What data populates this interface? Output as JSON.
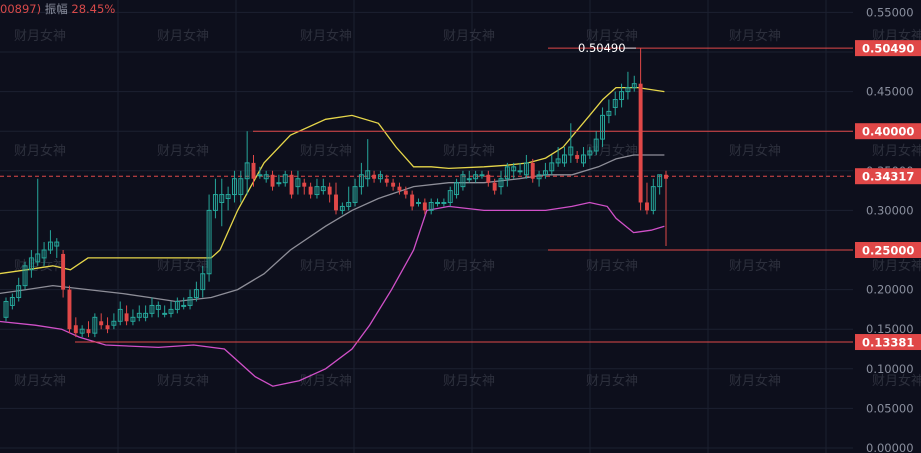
{
  "header": {
    "code": "00897)",
    "amplitude_label": "振幅",
    "amplitude_value": "28.45%"
  },
  "watermark": "财月女神",
  "colors": {
    "background": "#0d0f1c",
    "up": "#26a69a",
    "down": "#e04848",
    "ma_upper": "#e6d64a",
    "ma_mid": "#8e8e98",
    "ma_lower": "#d050c8",
    "level_line": "#e04848"
  },
  "chart_data": {
    "type": "candlestick",
    "ylim": [
      0,
      0.55
    ],
    "yticks": [
      "0.55000",
      "0.50000",
      "0.45000",
      "0.40000",
      "0.35000",
      "0.30000",
      "0.25000",
      "0.20000",
      "0.15000",
      "0.10000",
      "0.05000",
      "0.00000"
    ],
    "ytick_values": [
      0.55,
      0.5,
      0.45,
      0.4,
      0.35,
      0.3,
      0.25,
      0.2,
      0.15,
      0.1,
      0.05,
      0.0
    ],
    "price_levels": [
      {
        "value": 0.5049,
        "label": "0.50490"
      },
      {
        "value": 0.4,
        "label": "0.40000"
      },
      {
        "value": 0.34317,
        "label": "0.34317",
        "dashed": true
      },
      {
        "value": 0.25,
        "label": "0.25000"
      },
      {
        "value": 0.13381,
        "label": "0.13381"
      }
    ],
    "peak_annotation": {
      "value": 0.5049,
      "label": "0.50490"
    },
    "candles": [
      [
        0.165,
        0.185,
        0.16,
        0.19
      ],
      [
        0.18,
        0.19,
        0.175,
        0.195
      ],
      [
        0.19,
        0.205,
        0.185,
        0.215
      ],
      [
        0.205,
        0.23,
        0.2,
        0.235
      ],
      [
        0.225,
        0.24,
        0.215,
        0.25
      ],
      [
        0.235,
        0.245,
        0.23,
        0.34
      ],
      [
        0.24,
        0.25,
        0.23,
        0.26
      ],
      [
        0.25,
        0.26,
        0.245,
        0.275
      ],
      [
        0.255,
        0.26,
        0.24,
        0.265
      ],
      [
        0.245,
        0.2,
        0.19,
        0.25
      ],
      [
        0.2,
        0.15,
        0.145,
        0.205
      ],
      [
        0.155,
        0.145,
        0.14,
        0.165
      ],
      [
        0.145,
        0.15,
        0.14,
        0.155
      ],
      [
        0.15,
        0.145,
        0.14,
        0.16
      ],
      [
        0.145,
        0.165,
        0.14,
        0.17
      ],
      [
        0.16,
        0.155,
        0.15,
        0.17
      ],
      [
        0.155,
        0.15,
        0.145,
        0.165
      ],
      [
        0.155,
        0.16,
        0.15,
        0.17
      ],
      [
        0.16,
        0.175,
        0.155,
        0.185
      ],
      [
        0.17,
        0.16,
        0.155,
        0.18
      ],
      [
        0.16,
        0.165,
        0.155,
        0.175
      ],
      [
        0.165,
        0.17,
        0.16,
        0.18
      ],
      [
        0.165,
        0.17,
        0.16,
        0.18
      ],
      [
        0.17,
        0.18,
        0.165,
        0.19
      ],
      [
        0.175,
        0.18,
        0.165,
        0.185
      ],
      [
        0.17,
        0.17,
        0.165,
        0.18
      ],
      [
        0.17,
        0.175,
        0.165,
        0.185
      ],
      [
        0.175,
        0.185,
        0.17,
        0.19
      ],
      [
        0.18,
        0.18,
        0.175,
        0.19
      ],
      [
        0.18,
        0.19,
        0.175,
        0.2
      ],
      [
        0.19,
        0.2,
        0.185,
        0.21
      ],
      [
        0.2,
        0.22,
        0.19,
        0.23
      ],
      [
        0.22,
        0.3,
        0.21,
        0.32
      ],
      [
        0.3,
        0.32,
        0.29,
        0.34
      ],
      [
        0.31,
        0.32,
        0.28,
        0.34
      ],
      [
        0.315,
        0.32,
        0.3,
        0.33
      ],
      [
        0.32,
        0.34,
        0.31,
        0.35
      ],
      [
        0.32,
        0.34,
        0.31,
        0.35
      ],
      [
        0.34,
        0.36,
        0.32,
        0.4
      ],
      [
        0.36,
        0.34,
        0.33,
        0.37
      ],
      [
        0.345,
        0.345,
        0.34,
        0.355
      ],
      [
        0.34,
        0.345,
        0.335,
        0.35
      ],
      [
        0.345,
        0.33,
        0.325,
        0.35
      ],
      [
        0.335,
        0.335,
        0.33,
        0.345
      ],
      [
        0.335,
        0.345,
        0.33,
        0.35
      ],
      [
        0.345,
        0.32,
        0.315,
        0.35
      ],
      [
        0.33,
        0.34,
        0.32,
        0.35
      ],
      [
        0.335,
        0.33,
        0.32,
        0.34
      ],
      [
        0.33,
        0.32,
        0.315,
        0.335
      ],
      [
        0.32,
        0.33,
        0.315,
        0.34
      ],
      [
        0.325,
        0.33,
        0.32,
        0.34
      ],
      [
        0.33,
        0.32,
        0.31,
        0.335
      ],
      [
        0.32,
        0.3,
        0.295,
        0.335
      ],
      [
        0.3,
        0.305,
        0.295,
        0.31
      ],
      [
        0.305,
        0.31,
        0.3,
        0.33
      ],
      [
        0.31,
        0.33,
        0.305,
        0.34
      ],
      [
        0.33,
        0.345,
        0.32,
        0.36
      ],
      [
        0.34,
        0.35,
        0.33,
        0.39
      ],
      [
        0.345,
        0.34,
        0.335,
        0.35
      ],
      [
        0.34,
        0.345,
        0.335,
        0.35
      ],
      [
        0.34,
        0.335,
        0.33,
        0.345
      ],
      [
        0.335,
        0.33,
        0.325,
        0.34
      ],
      [
        0.33,
        0.325,
        0.32,
        0.335
      ],
      [
        0.325,
        0.32,
        0.315,
        0.33
      ],
      [
        0.32,
        0.305,
        0.3,
        0.325
      ],
      [
        0.31,
        0.31,
        0.305,
        0.315
      ],
      [
        0.31,
        0.3,
        0.295,
        0.315
      ],
      [
        0.3,
        0.31,
        0.295,
        0.315
      ],
      [
        0.31,
        0.31,
        0.305,
        0.315
      ],
      [
        0.31,
        0.31,
        0.305,
        0.315
      ],
      [
        0.31,
        0.325,
        0.305,
        0.33
      ],
      [
        0.32,
        0.335,
        0.315,
        0.34
      ],
      [
        0.33,
        0.345,
        0.325,
        0.35
      ],
      [
        0.34,
        0.34,
        0.335,
        0.35
      ],
      [
        0.34,
        0.345,
        0.335,
        0.35
      ],
      [
        0.345,
        0.345,
        0.34,
        0.35
      ],
      [
        0.345,
        0.335,
        0.33,
        0.35
      ],
      [
        0.335,
        0.325,
        0.32,
        0.34
      ],
      [
        0.33,
        0.34,
        0.32,
        0.35
      ],
      [
        0.34,
        0.355,
        0.33,
        0.36
      ],
      [
        0.35,
        0.355,
        0.34,
        0.36
      ],
      [
        0.35,
        0.35,
        0.345,
        0.36
      ],
      [
        0.345,
        0.36,
        0.34,
        0.37
      ],
      [
        0.36,
        0.34,
        0.335,
        0.365
      ],
      [
        0.34,
        0.345,
        0.33,
        0.35
      ],
      [
        0.345,
        0.35,
        0.34,
        0.36
      ],
      [
        0.35,
        0.36,
        0.345,
        0.37
      ],
      [
        0.36,
        0.365,
        0.355,
        0.38
      ],
      [
        0.36,
        0.37,
        0.355,
        0.38
      ],
      [
        0.37,
        0.38,
        0.36,
        0.41
      ],
      [
        0.37,
        0.365,
        0.36,
        0.375
      ],
      [
        0.36,
        0.37,
        0.355,
        0.38
      ],
      [
        0.37,
        0.375,
        0.365,
        0.38
      ],
      [
        0.375,
        0.39,
        0.37,
        0.4
      ],
      [
        0.39,
        0.42,
        0.38,
        0.43
      ],
      [
        0.42,
        0.425,
        0.41,
        0.44
      ],
      [
        0.43,
        0.44,
        0.42,
        0.45
      ],
      [
        0.44,
        0.45,
        0.43,
        0.46
      ],
      [
        0.45,
        0.455,
        0.44,
        0.475
      ],
      [
        0.455,
        0.46,
        0.45,
        0.47
      ],
      [
        0.46,
        0.31,
        0.3,
        0.5049
      ],
      [
        0.31,
        0.3,
        0.295,
        0.335
      ],
      [
        0.3,
        0.33,
        0.295,
        0.34
      ],
      [
        0.33,
        0.345,
        0.32,
        0.345
      ],
      [
        0.345,
        0.34,
        0.255,
        0.35
      ]
    ],
    "upper_band": [
      [
        -0.002,
        0.22
      ],
      [
        0.03,
        0.225
      ],
      [
        0.06,
        0.23
      ],
      [
        0.08,
        0.225
      ],
      [
        0.1,
        0.24
      ],
      [
        0.12,
        0.24
      ],
      [
        0.15,
        0.24
      ],
      [
        0.2,
        0.24
      ],
      [
        0.23,
        0.24
      ],
      [
        0.24,
        0.24
      ],
      [
        0.25,
        0.25
      ],
      [
        0.27,
        0.3
      ],
      [
        0.285,
        0.33
      ],
      [
        0.3,
        0.36
      ],
      [
        0.33,
        0.395
      ],
      [
        0.37,
        0.415
      ],
      [
        0.4,
        0.42
      ],
      [
        0.43,
        0.41
      ],
      [
        0.45,
        0.38
      ],
      [
        0.47,
        0.355
      ],
      [
        0.49,
        0.355
      ],
      [
        0.51,
        0.353
      ],
      [
        0.55,
        0.355
      ],
      [
        0.575,
        0.357
      ],
      [
        0.6,
        0.36
      ],
      [
        0.62,
        0.366
      ],
      [
        0.64,
        0.38
      ],
      [
        0.655,
        0.4
      ],
      [
        0.67,
        0.42
      ],
      [
        0.685,
        0.44
      ],
      [
        0.7,
        0.455
      ],
      [
        0.725,
        0.455
      ],
      [
        0.755,
        0.45
      ]
    ],
    "middle_band": [
      [
        -0.002,
        0.195
      ],
      [
        0.03,
        0.2
      ],
      [
        0.06,
        0.205
      ],
      [
        0.1,
        0.2
      ],
      [
        0.14,
        0.195
      ],
      [
        0.17,
        0.19
      ],
      [
        0.2,
        0.185
      ],
      [
        0.24,
        0.19
      ],
      [
        0.27,
        0.2
      ],
      [
        0.3,
        0.22
      ],
      [
        0.33,
        0.25
      ],
      [
        0.37,
        0.28
      ],
      [
        0.4,
        0.3
      ],
      [
        0.43,
        0.315
      ],
      [
        0.47,
        0.33
      ],
      [
        0.51,
        0.335
      ],
      [
        0.55,
        0.335
      ],
      [
        0.59,
        0.34
      ],
      [
        0.62,
        0.345
      ],
      [
        0.65,
        0.345
      ],
      [
        0.68,
        0.355
      ],
      [
        0.7,
        0.365
      ],
      [
        0.72,
        0.37
      ],
      [
        0.74,
        0.37
      ],
      [
        0.755,
        0.37
      ]
    ],
    "lower_band": [
      [
        -0.002,
        0.16
      ],
      [
        0.04,
        0.155
      ],
      [
        0.07,
        0.15
      ],
      [
        0.09,
        0.14
      ],
      [
        0.12,
        0.13
      ],
      [
        0.18,
        0.127
      ],
      [
        0.22,
        0.13
      ],
      [
        0.255,
        0.125
      ],
      [
        0.27,
        0.11
      ],
      [
        0.29,
        0.09
      ],
      [
        0.31,
        0.078
      ],
      [
        0.34,
        0.085
      ],
      [
        0.37,
        0.1
      ],
      [
        0.4,
        0.125
      ],
      [
        0.42,
        0.155
      ],
      [
        0.445,
        0.2
      ],
      [
        0.47,
        0.25
      ],
      [
        0.485,
        0.3
      ],
      [
        0.51,
        0.305
      ],
      [
        0.55,
        0.3
      ],
      [
        0.59,
        0.3
      ],
      [
        0.62,
        0.3
      ],
      [
        0.65,
        0.305
      ],
      [
        0.67,
        0.31
      ],
      [
        0.69,
        0.305
      ],
      [
        0.7,
        0.29
      ],
      [
        0.72,
        0.272
      ],
      [
        0.74,
        0.275
      ],
      [
        0.755,
        0.28
      ]
    ]
  }
}
